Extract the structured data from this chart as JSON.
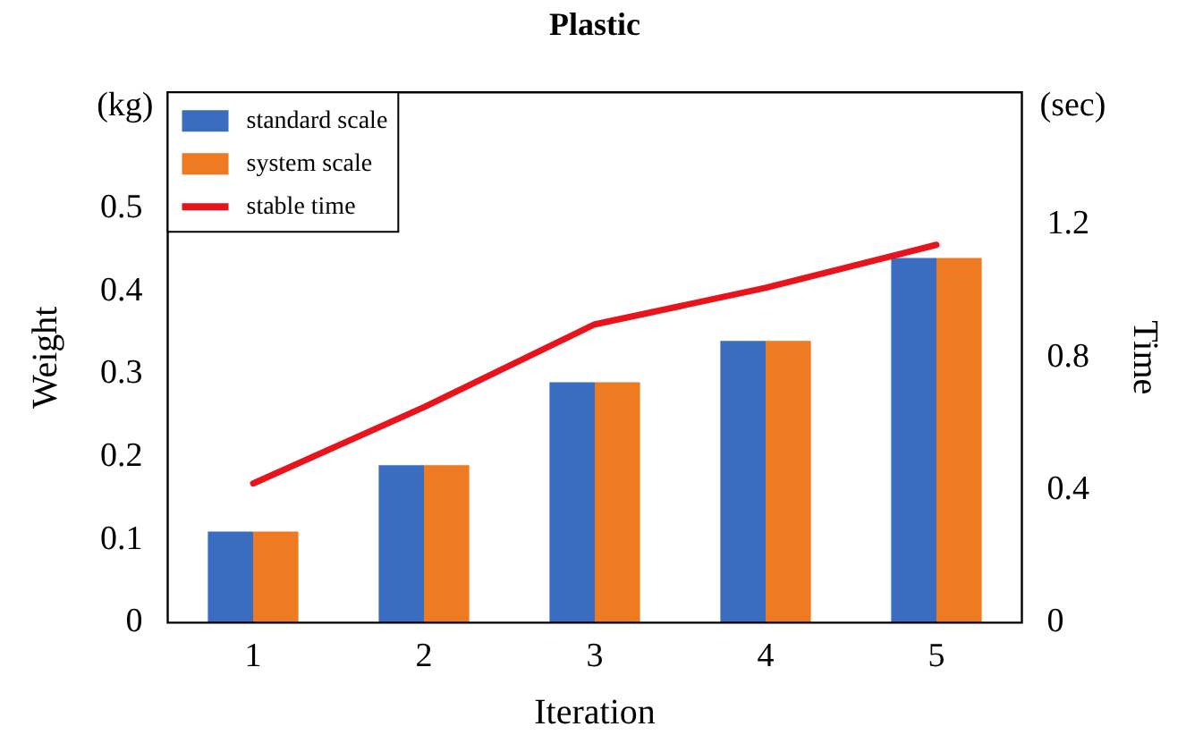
{
  "chart_data": {
    "type": "bar",
    "title": "Plastic",
    "xlabel": "Iteration",
    "ylabel": "Weight",
    "y2label": "Time",
    "annotations": [
      "(kg)",
      "(sec)"
    ],
    "categories": [
      "1",
      "2",
      "3",
      "4",
      "5"
    ],
    "series": [
      {
        "name": "standard scale",
        "color": "#3a6cc0",
        "values": [
          0.11,
          0.19,
          0.29,
          0.34,
          0.44
        ]
      },
      {
        "name": "system scale",
        "color": "#ee7a22",
        "values": [
          0.11,
          0.19,
          0.29,
          0.34,
          0.44
        ]
      },
      {
        "name": "stable time",
        "type": "line",
        "axis": "y2",
        "color": "#e8131b",
        "values": [
          0.42,
          0.65,
          0.9,
          1.01,
          1.14
        ]
      }
    ],
    "ylim": [
      0,
      0.64
    ],
    "yticks": [
      0,
      0.1,
      0.2,
      0.3,
      0.4,
      0.5
    ],
    "y2lim": [
      0,
      1.6
    ],
    "y2ticks": [
      0,
      0.4,
      0.8,
      1.2
    ],
    "grid": false,
    "legend": "top left",
    "marker": "none",
    "line_style": "solid"
  }
}
